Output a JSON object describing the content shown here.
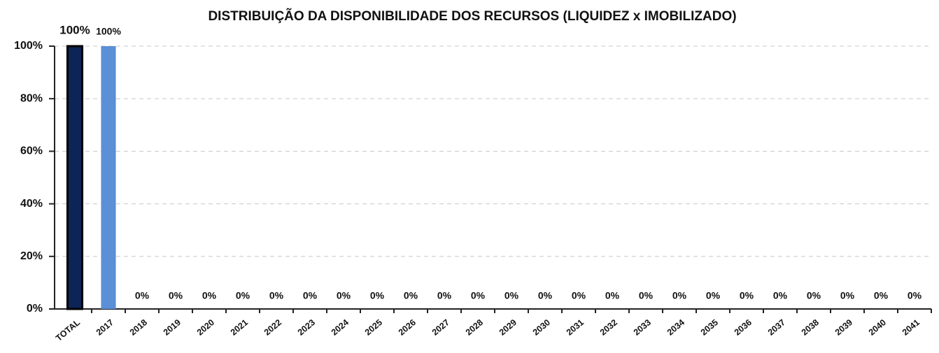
{
  "chart_data": {
    "type": "bar",
    "title": "DISTRIBUIÇÃO DA DISPONIBILIDADE DOS RECURSOS  (LIQUIDEZ x IMOBILIZADO)",
    "categories": [
      "TOTAL",
      "2017",
      "2018",
      "2019",
      "2020",
      "2021",
      "2022",
      "2023",
      "2024",
      "2025",
      "2026",
      "2027",
      "2028",
      "2029",
      "2030",
      "2031",
      "2032",
      "2033",
      "2034",
      "2035",
      "2036",
      "2037",
      "2038",
      "2039",
      "2040",
      "2041"
    ],
    "values": [
      100,
      100,
      0,
      0,
      0,
      0,
      0,
      0,
      0,
      0,
      0,
      0,
      0,
      0,
      0,
      0,
      0,
      0,
      0,
      0,
      0,
      0,
      0,
      0,
      0,
      0
    ],
    "value_labels": [
      "100%",
      "100%",
      "0%",
      "0%",
      "0%",
      "0%",
      "0%",
      "0%",
      "0%",
      "0%",
      "0%",
      "0%",
      "0%",
      "0%",
      "0%",
      "0%",
      "0%",
      "0%",
      "0%",
      "0%",
      "0%",
      "0%",
      "0%",
      "0%",
      "0%",
      "0%"
    ],
    "colors": [
      "#0d2457",
      "#5b8fd6",
      "#5b8fd6",
      "#5b8fd6",
      "#5b8fd6",
      "#5b8fd6",
      "#5b8fd6",
      "#5b8fd6",
      "#5b8fd6",
      "#5b8fd6",
      "#5b8fd6",
      "#5b8fd6",
      "#5b8fd6",
      "#5b8fd6",
      "#5b8fd6",
      "#5b8fd6",
      "#5b8fd6",
      "#5b8fd6",
      "#5b8fd6",
      "#5b8fd6",
      "#5b8fd6",
      "#5b8fd6",
      "#5b8fd6",
      "#5b8fd6",
      "#5b8fd6",
      "#5b8fd6"
    ],
    "ylim": [
      0,
      100
    ],
    "yticks": [
      {
        "value": 0,
        "label": "0%"
      },
      {
        "value": 20,
        "label": "20%"
      },
      {
        "value": 40,
        "label": "40%"
      },
      {
        "value": 60,
        "label": "60%"
      },
      {
        "value": 80,
        "label": "80%"
      },
      {
        "value": 100,
        "label": "100%"
      }
    ],
    "grid": true
  }
}
